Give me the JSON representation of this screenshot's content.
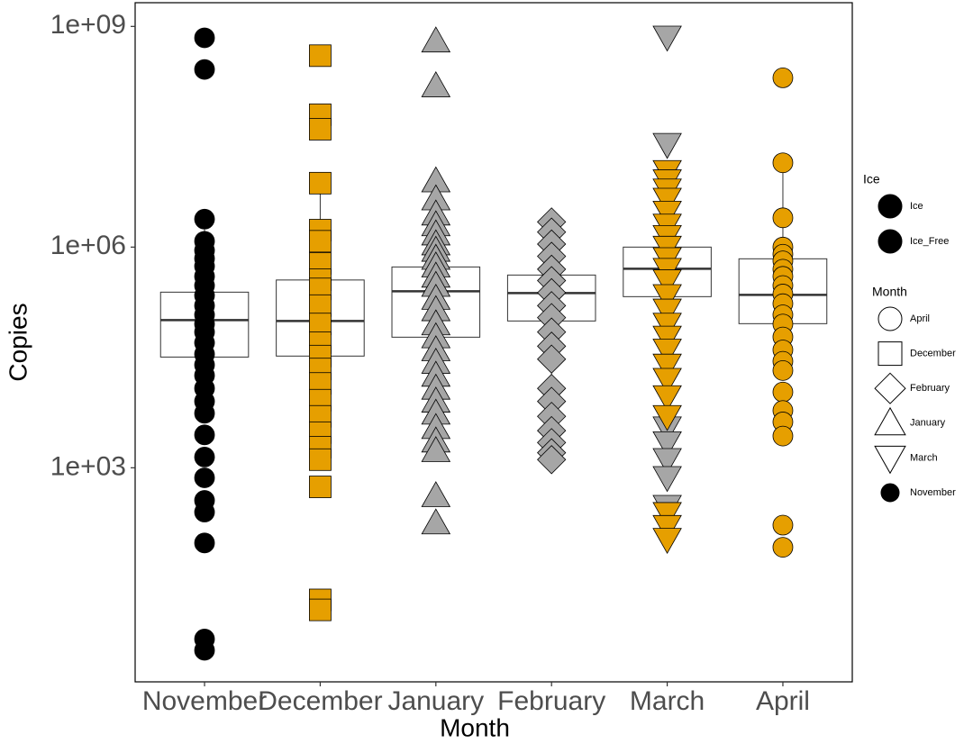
{
  "chart_data": {
    "type": "box",
    "x_label": "Month",
    "y_label": "Copies",
    "log_y": true,
    "ylim": [
      1.23,
      2100000000.0
    ],
    "yticks": [
      {
        "value": 1000,
        "label": "1e+03"
      },
      {
        "value": 1000000,
        "label": "1e+06"
      },
      {
        "value": 1000000000,
        "label": "1e+09"
      }
    ],
    "categories": [
      "November",
      "December",
      "January",
      "February",
      "March",
      "April"
    ],
    "boxes": [
      {
        "shape": "circle",
        "lower": 5500,
        "q1": 32000,
        "median": 101600,
        "q3": 244000,
        "upper": 2400000,
        "groups": [
          {
            "fill": "#000000",
            "points": [
              700000000,
              260000000,
              2400000,
              1200000,
              900000,
              700000,
              550000,
              400000,
              300000,
              220000,
              160000,
              120000,
              90000,
              70000,
              50000,
              35000,
              25000,
              18000,
              12000,
              8000,
              5500,
              2800,
              1400,
              730,
              360,
              250,
              95,
              4.7,
              3.3
            ]
          }
        ]
      },
      {
        "shape": "square",
        "lower": 8300,
        "q1": 33000,
        "median": 99000,
        "q3": 357000,
        "upper": 7400000,
        "groups": [
          {
            "fill": "#e69f00",
            "points": [
              400000000,
              63000000,
              40000000,
              7400000,
              1700000,
              1200000,
              600000,
              360000,
              270000,
              160000,
              90000,
              50000,
              33000,
              22000,
              14000,
              8300,
              5000,
              3000,
              1900,
              1290,
              550,
              16,
              11.7
            ]
          }
        ]
      },
      {
        "shape": "triangle",
        "lower": 4600,
        "q1": 59600,
        "median": 251000,
        "q3": 537000,
        "upper": 7900000,
        "groups": [
          {
            "fill": "#a6a6a6",
            "points": [
              630000000,
              155000000,
              7900000,
              4500000,
              2800000,
              2000000,
              1500000,
              1100000,
              900000,
              700000,
              550000,
              400000,
              300000,
              200000,
              140000,
              90000,
              60000,
              40000,
              27000,
              18000,
              12000,
              8000,
              5500,
              3500,
              2300,
              1700,
              415,
              177
            ]
          }
        ]
      },
      {
        "shape": "diamond",
        "lower": 1290,
        "q1": 99000,
        "median": 237000,
        "q3": 417000,
        "upper": 2200000,
        "groups": [
          {
            "fill": "#a6a6a6",
            "points": [
              2200000,
              1600000,
              1100000,
              750000,
              500000,
              350000,
              240000,
              160000,
              110000,
              70000,
              45000,
              30000,
              12000,
              8000,
              5000,
              3200,
              2200,
              1600,
              1290
            ]
          }
        ]
      },
      {
        "shape": "triangle-down",
        "lower": 9300,
        "q1": 212000,
        "median": 507000,
        "q3": 1000000,
        "upper": 10700000,
        "groups": [
          {
            "fill": "#a6a6a6",
            "points": [
              720000000,
              25000000,
              3500,
              2200,
              1300,
              740,
              300
            ]
          },
          {
            "fill": "#e69f00",
            "points": [
              10700000,
              8000000,
              6000000,
              4500000,
              3000000,
              2000000,
              1400000,
              1000000,
              700000,
              500000,
              350000,
              220000,
              140000,
              90000,
              60000,
              40000,
              25000,
              16000,
              9300,
              5000,
              240,
              160,
              107
            ]
          }
        ]
      },
      {
        "shape": "circle",
        "lower": 21000,
        "q1": 91000,
        "median": 224000,
        "q3": 693000,
        "upper": 14000000,
        "groups": [
          {
            "fill": "#e69f00",
            "points": [
              200000000,
              14000000,
              2500000,
              1000000,
              800000,
              650000,
              500000,
              400000,
              300000,
              230000,
              170000,
              120000,
              90000,
              60000,
              40000,
              28000,
              21000,
              10700,
              6000,
              4200,
              2700,
              166,
              83
            ]
          }
        ]
      }
    ],
    "legends": [
      {
        "title": "Ice",
        "entries": [
          {
            "label": "Ice",
            "shape": "circle",
            "fill": "#000000"
          },
          {
            "label": "Ice_Free",
            "shape": "circle",
            "fill": "#000000"
          }
        ]
      },
      {
        "title": "Month",
        "entries": [
          {
            "label": "April",
            "shape": "circle",
            "fill": "#ffffff"
          },
          {
            "label": "December",
            "shape": "square",
            "fill": "#ffffff"
          },
          {
            "label": "February",
            "shape": "diamond",
            "fill": "#ffffff"
          },
          {
            "label": "January",
            "shape": "triangle",
            "fill": "#ffffff"
          },
          {
            "label": "March",
            "shape": "triangle-down",
            "fill": "#ffffff"
          },
          {
            "label": "November",
            "shape": "circle",
            "fill": "#000000"
          }
        ]
      }
    ]
  }
}
